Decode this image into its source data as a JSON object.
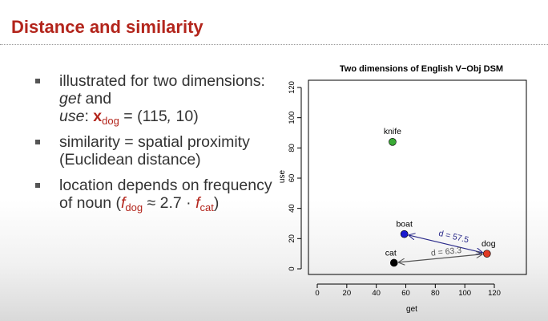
{
  "slide": {
    "title": "Distance and similarity"
  },
  "bullets": [
    {
      "pre": "illustrated for two dimensions:",
      "get": "get",
      "and": "and",
      "use": "use",
      "colon": ":",
      "vec": "x",
      "vec_sub": "dog",
      "eq": "= (115",
      "comma": ",",
      "rest": "10)"
    },
    {
      "text": "similarity = spatial proximity (Euclidean distance)"
    },
    {
      "pre": "location depends on frequency of noun (",
      "f1": "f",
      "f1_sub": "dog",
      "approx": "≈ 2.7 ·",
      "f2": "f",
      "f2_sub": "cat",
      "close": ")"
    }
  ],
  "chart_data": {
    "type": "scatter",
    "title": "Two dimensions of English V−Obj DSM",
    "xlabel": "get",
    "ylabel": "use",
    "xlim": [
      0,
      120
    ],
    "ylim": [
      0,
      120
    ],
    "xticks": [
      "0",
      "20",
      "40",
      "60",
      "80",
      "100",
      "120"
    ],
    "yticks": [
      "0",
      "20",
      "40",
      "60",
      "80",
      "100",
      "120"
    ],
    "points": [
      {
        "label": "knife",
        "x": 51,
        "y": 84,
        "color": "#3aaa35"
      },
      {
        "label": "boat",
        "x": 59,
        "y": 23,
        "color": "#1a1ad0"
      },
      {
        "label": "cat",
        "x": 52,
        "y": 4,
        "color": "#000000"
      },
      {
        "label": "dog",
        "x": 115,
        "y": 10,
        "color": "#e03a25"
      }
    ],
    "distances": [
      {
        "from": "boat",
        "to": "dog",
        "label": "d = 57.5",
        "color": "#2a2a8a"
      },
      {
        "from": "cat",
        "to": "dog",
        "label": "d = 63.3",
        "color": "#555555"
      }
    ]
  }
}
